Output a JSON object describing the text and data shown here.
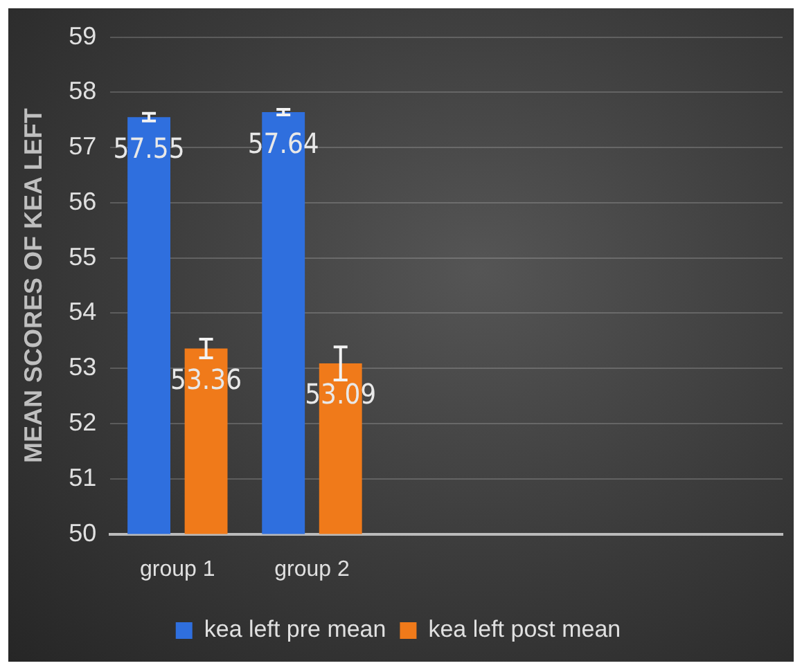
{
  "chart_data": {
    "type": "bar",
    "ylabel": "MEAN SCORES OF KEA LEFT",
    "categories": [
      "group 1",
      "group 2",
      null,
      null,
      null
    ],
    "series": [
      {
        "name": "kea left pre mean",
        "color": "#2f6fde",
        "values": [
          57.55,
          57.64,
          null,
          null,
          null
        ],
        "errors": [
          0.07,
          0.05,
          null,
          null,
          null
        ]
      },
      {
        "name": "kea left post mean",
        "color": "#f07a1a",
        "values": [
          53.36,
          53.09,
          null,
          null,
          null
        ],
        "errors": [
          0.17,
          0.3,
          null,
          null,
          null
        ]
      }
    ],
    "ylim": [
      50,
      59
    ],
    "yticks": [
      50,
      51,
      52,
      53,
      54,
      55,
      56,
      57,
      58,
      59
    ],
    "grid": "y",
    "legend": "bottom",
    "data_labels": true
  }
}
